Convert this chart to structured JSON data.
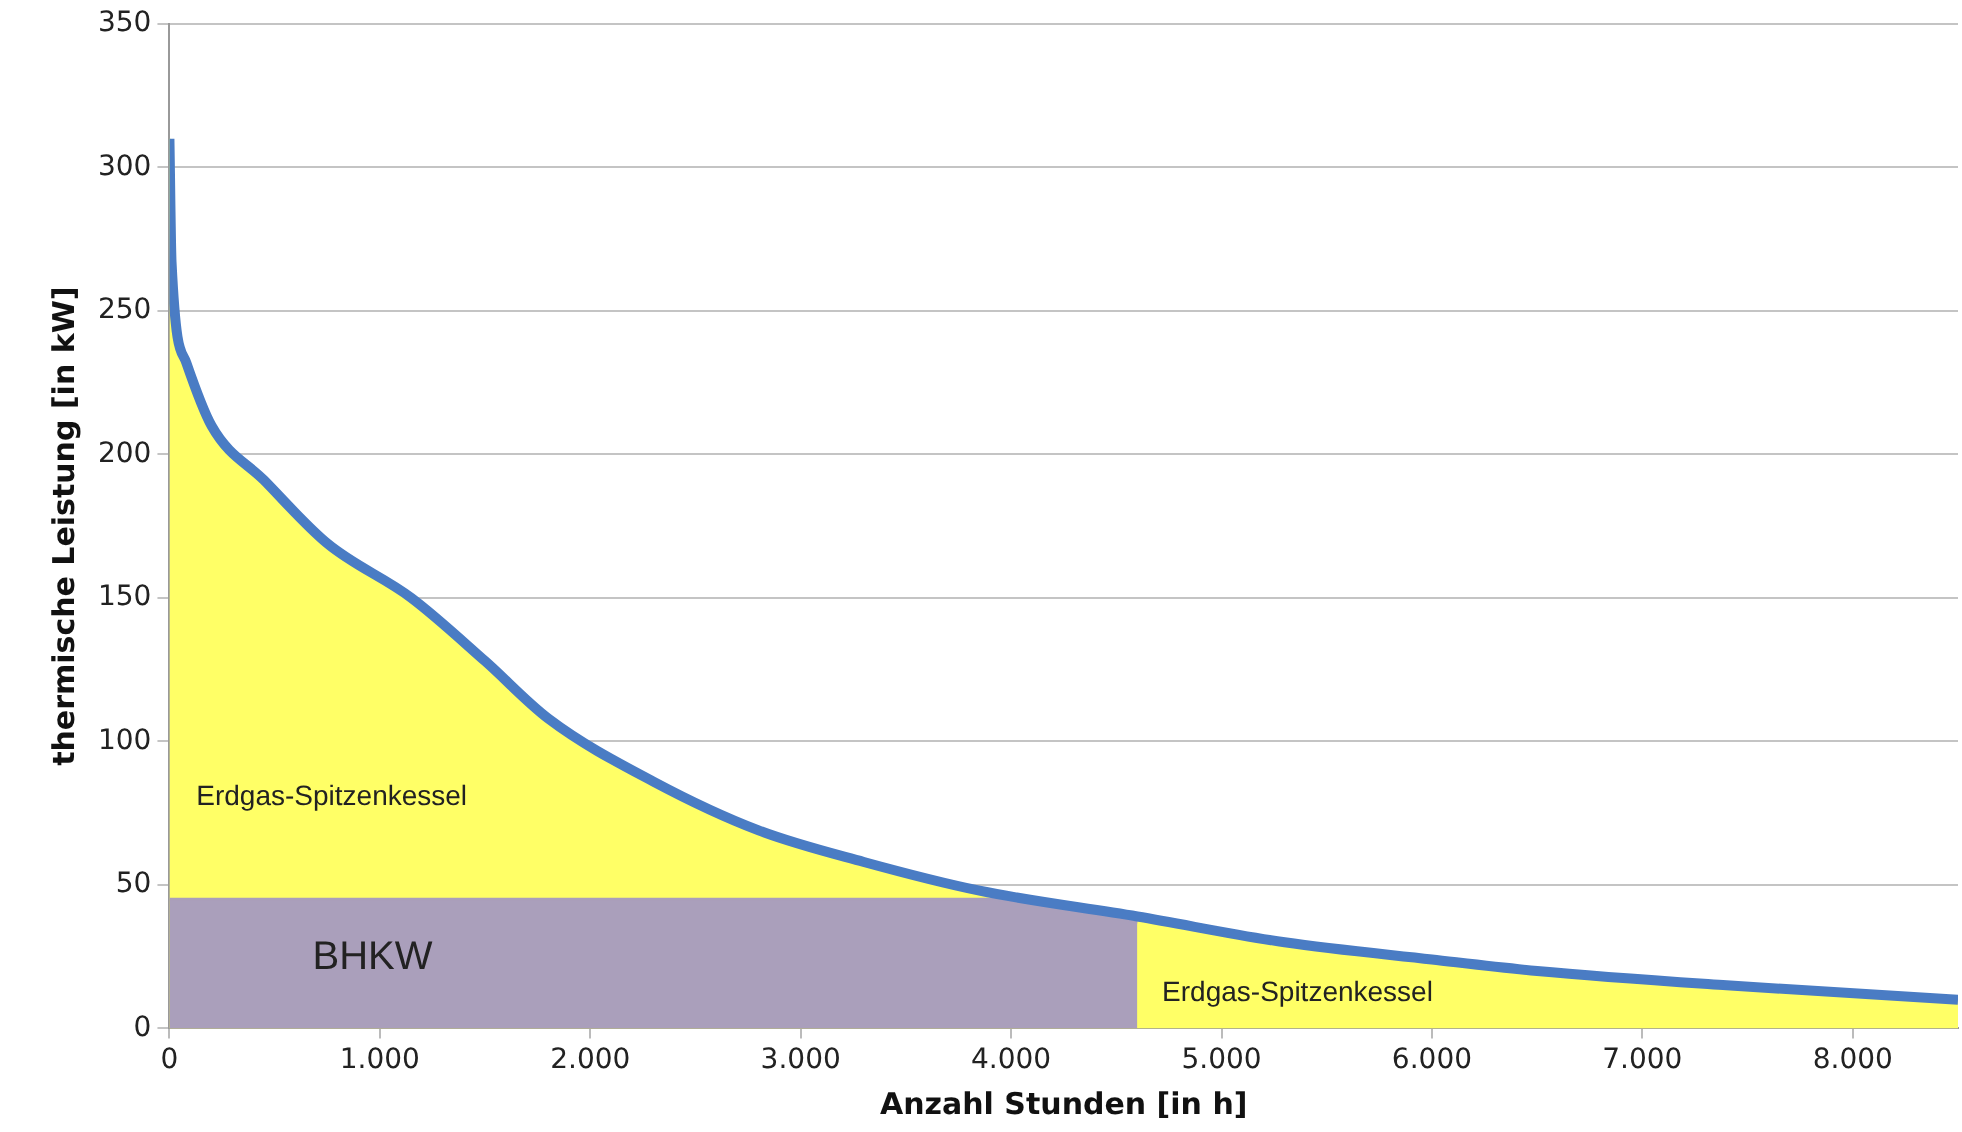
{
  "chart_data": {
    "type": "area",
    "xlabel": "Anzahl Stunden [in h]",
    "ylabel": "thermische Leistung [in kW]",
    "xlim": [
      0,
      8500
    ],
    "xticks": [
      0,
      {
        "value": 1000,
        "label": "1.000"
      },
      {
        "value": 2000,
        "label": "2.000"
      },
      {
        "value": 3000,
        "label": "3.000"
      },
      {
        "value": 4000,
        "label": "4.000"
      },
      {
        "value": 5000,
        "label": "5.000"
      },
      {
        "value": 6000,
        "label": "6.000"
      },
      {
        "value": 7000,
        "label": "7.000"
      },
      {
        "value": 8000,
        "label": "8.000"
      }
    ],
    "ylim": [
      0,
      350
    ],
    "yticks": [
      0,
      50,
      100,
      150,
      200,
      250,
      300,
      350
    ],
    "grid": "y",
    "legend": false,
    "x": [
      0,
      10,
      80,
      200,
      450,
      750,
      1150,
      1500,
      1800,
      2300,
      2800,
      3300,
      3850,
      4600,
      5300,
      6000,
      6500,
      7400,
      8500
    ],
    "series": [
      {
        "color": "#ffff66",
        "values": [
          310,
          267,
          232,
          210,
          191,
          169,
          150,
          128,
          108,
          86,
          69,
          58,
          48,
          39,
          30,
          24,
          20,
          15,
          10
        ]
      },
      {
        "type": "area",
        "color": "#aa9fbb",
        "x": [
          0,
          3900,
          4600
        ],
        "values": [
          45,
          45,
          37
        ]
      },
      {
        "type": "line",
        "color": "#4a7cc4",
        "values": [
          310,
          267,
          232,
          210,
          191,
          169,
          150,
          128,
          108,
          86,
          69,
          58,
          48,
          39,
          30,
          24,
          20,
          15,
          10
        ]
      }
    ],
    "annotations": [
      "Erdgas-Spitzenkessel",
      "BHKW",
      "Erdgas-Spitzenkessel"
    ]
  }
}
